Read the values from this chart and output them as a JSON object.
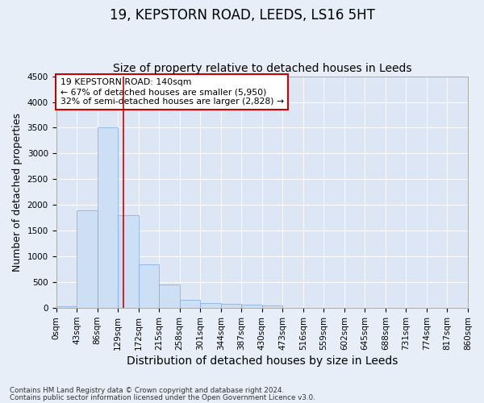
{
  "title": "19, KEPSTORN ROAD, LEEDS, LS16 5HT",
  "subtitle": "Size of property relative to detached houses in Leeds",
  "xlabel": "Distribution of detached houses by size in Leeds",
  "ylabel": "Number of detached properties",
  "annotation_title": "19 KEPSTORN ROAD: 140sqm",
  "annotation_line1": "← 67% of detached houses are smaller (5,950)",
  "annotation_line2": "32% of semi-detached houses are larger (2,828) →",
  "footer1": "Contains HM Land Registry data © Crown copyright and database right 2024.",
  "footer2": "Contains public sector information licensed under the Open Government Licence v3.0.",
  "bar_color": "#ccdff5",
  "bar_edge_color": "#7aabdb",
  "vline_color": "#cc0000",
  "annotation_box_color": "#ffffff",
  "annotation_box_edge": "#cc0000",
  "ylim": [
    0,
    4500
  ],
  "yticks": [
    0,
    500,
    1000,
    1500,
    2000,
    2500,
    3000,
    3500,
    4000,
    4500
  ],
  "bin_edges": [
    0,
    43,
    86,
    129,
    172,
    215,
    258,
    301,
    344,
    387,
    430,
    473,
    516,
    559,
    602,
    645,
    688,
    731,
    774,
    817,
    860
  ],
  "counts": [
    30,
    1900,
    3500,
    1800,
    850,
    450,
    160,
    100,
    75,
    60,
    45,
    0,
    0,
    0,
    0,
    0,
    0,
    0,
    0,
    0
  ],
  "background_color": "#e8eef8",
  "plot_background": "#dce6f5",
  "grid_color": "#ffffff",
  "title_fontsize": 12,
  "subtitle_fontsize": 10,
  "axis_label_fontsize": 9,
  "tick_fontsize": 7.5,
  "vline_x_index": 3.26
}
